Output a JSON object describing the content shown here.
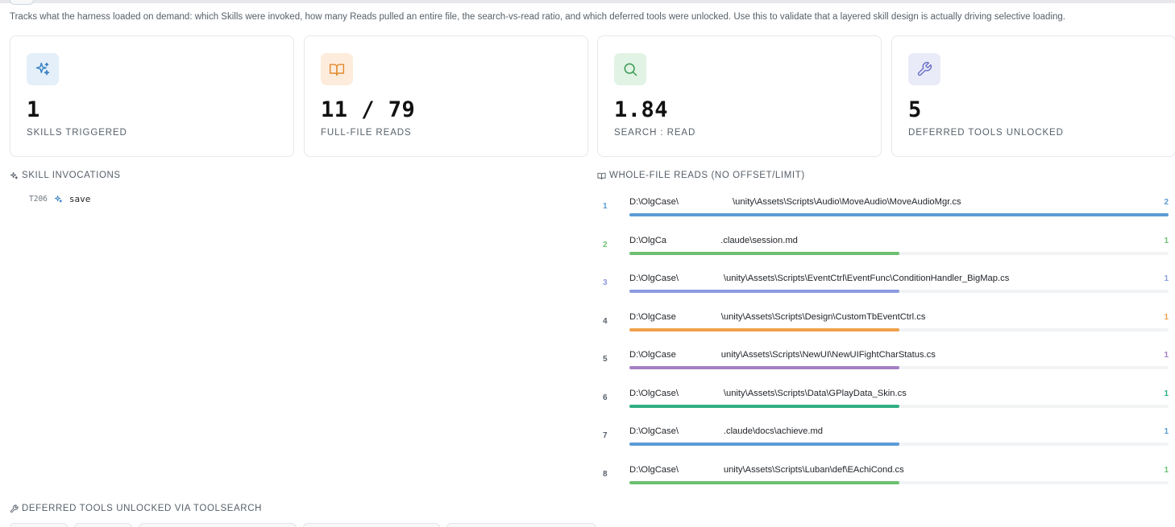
{
  "description": "Tracks what the harness loaded on demand: which Skills were invoked, how many Reads pulled an entire file, the search-vs-read ratio, and which deferred tools were unlocked. Use this to validate that a layered skill design is actually driving selective loading.",
  "stats": [
    {
      "value": "1",
      "label": "SKILLS TRIGGERED",
      "icon": "sparkles-icon",
      "icon_color": "#3b82c4",
      "icon_bg": "#e4effa"
    },
    {
      "value": "11 / 79",
      "label": "FULL-FILE READS",
      "icon": "book-open-icon",
      "icon_color": "#e08a2e",
      "icon_bg": "#fdecdc"
    },
    {
      "value": "1.84",
      "label": "SEARCH : READ",
      "icon": "search-icon",
      "icon_color": "#3a9a52",
      "icon_bg": "#e1f3e5"
    },
    {
      "value": "5",
      "label": "DEFERRED TOOLS UNLOCKED",
      "icon": "wrench-icon",
      "icon_color": "#6b6fc7",
      "icon_bg": "#eaebf8"
    }
  ],
  "skill_invocations": {
    "title": "SKILL INVOCATIONS",
    "items": [
      {
        "turn": "T206",
        "name": "save"
      }
    ]
  },
  "whole_file_reads": {
    "title": "WHOLE-FILE READS (NO OFFSET/LIMIT)",
    "max_count": 2,
    "items": [
      {
        "rank": "1",
        "path": "D:\\OlgCase\\      \\unity\\Assets\\Scripts\\Audio\\MoveAudio\\MoveAudioMgr.cs",
        "count": 2,
        "color": "#5b9bd5"
      },
      {
        "rank": "2",
        "path": "D:\\OlgCa      .claude\\session.md",
        "count": 1,
        "color": "#6cc070"
      },
      {
        "rank": "3",
        "path": "D:\\OlgCase\\     \\unity\\Assets\\Scripts\\EventCtrl\\EventFunc\\ConditionHandler_BigMap.cs",
        "count": 1,
        "color": "#8c9be0"
      },
      {
        "rank": "4",
        "path": "D:\\OlgCase     \\unity\\Assets\\Scripts\\Design\\CustomTbEventCtrl.cs",
        "count": 1,
        "color": "#f0a04b"
      },
      {
        "rank": "5",
        "path": "D:\\OlgCase     unity\\Assets\\Scripts\\NewUI\\NewUIFightCharStatus.cs",
        "count": 1,
        "color": "#a57fc4"
      },
      {
        "rank": "6",
        "path": "D:\\OlgCase\\     \\unity\\Assets\\Scripts\\Data\\GPlayData_Skin.cs",
        "count": 1,
        "color": "#2fae84"
      },
      {
        "rank": "7",
        "path": "D:\\OlgCase\\     .claude\\docs\\achieve.md",
        "count": 1,
        "color": "#5b9bd5"
      },
      {
        "rank": "8",
        "path": "D:\\OlgCase\\     unity\\Assets\\Scripts\\Luban\\def\\EAchiCond.cs",
        "count": 1,
        "color": "#6cc070"
      }
    ]
  },
  "deferred_tools": {
    "title": "DEFERRED TOOLS UNLOCKED VIA TOOLSEARCH"
  }
}
